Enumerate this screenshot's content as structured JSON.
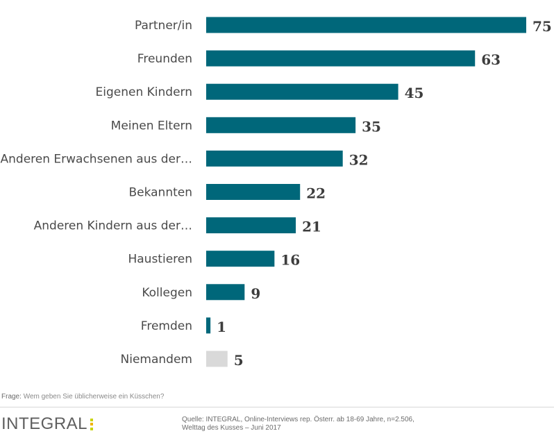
{
  "chart_data": {
    "type": "bar",
    "orientation": "horizontal",
    "categories": [
      "Partner/in",
      "Freunden",
      "Eigenen Kindern",
      "Meinen Eltern",
      "Anderen Erwachsenen aus der…",
      "Bekannten",
      "Anderen Kindern aus der…",
      "Haustieren",
      "Kollegen",
      "Fremden",
      "Niemandem"
    ],
    "values": [
      75,
      63,
      45,
      35,
      32,
      22,
      21,
      16,
      9,
      1,
      5
    ],
    "bar_colors": [
      "#00677a",
      "#00677a",
      "#00677a",
      "#00677a",
      "#00677a",
      "#00677a",
      "#00677a",
      "#00677a",
      "#00677a",
      "#00677a",
      "#d9d9d9"
    ],
    "data_labels": true,
    "grid": false,
    "xlim": [
      0,
      75
    ]
  },
  "footer": {
    "question_label": "Frage:",
    "question_text": "Wem geben Sie üblicherweise ein Küsschen?",
    "logo_text": "INTEGRAL",
    "logo_colors": [
      "#c8d400",
      "#f0b400",
      "#c8d400"
    ],
    "source_line1": "Quelle: INTEGRAL, Online-Interviews rep. Österr. ab 18-69 Jahre, n=2.506,",
    "source_line2": "Welttag des Kusses – Juni 2017"
  }
}
